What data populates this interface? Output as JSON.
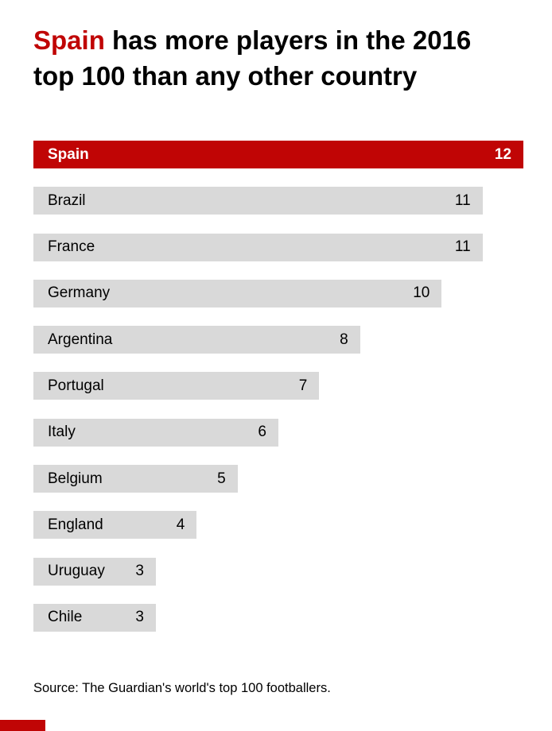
{
  "title": {
    "line1_highlight": "Spain",
    "line1_rest": " has more players in the 2016",
    "line2": "top 100 than any other country"
  },
  "chart_data": {
    "type": "bar",
    "orientation": "horizontal",
    "title": "Spain has more players in the 2016 top 100 than any other country",
    "categories": [
      "Spain",
      "Brazil",
      "France",
      "Germany",
      "Argentina",
      "Portugal",
      "Italy",
      "Belgium",
      "England",
      "Uruguay",
      "Chile"
    ],
    "values": [
      12,
      11,
      11,
      10,
      8,
      7,
      6,
      5,
      4,
      3,
      3
    ],
    "xlim": [
      0,
      12
    ],
    "value_labels_shown": true,
    "highlight_index": 0,
    "colors": {
      "highlight_bar": "#c00505",
      "default_bar": "#d9d9d9",
      "highlight_text": "#ffffff",
      "default_text": "#000000",
      "title_highlight": "#c00505"
    },
    "grid": false,
    "legend": false
  },
  "source": "Source: The Guardian's world's top 100 footballers."
}
